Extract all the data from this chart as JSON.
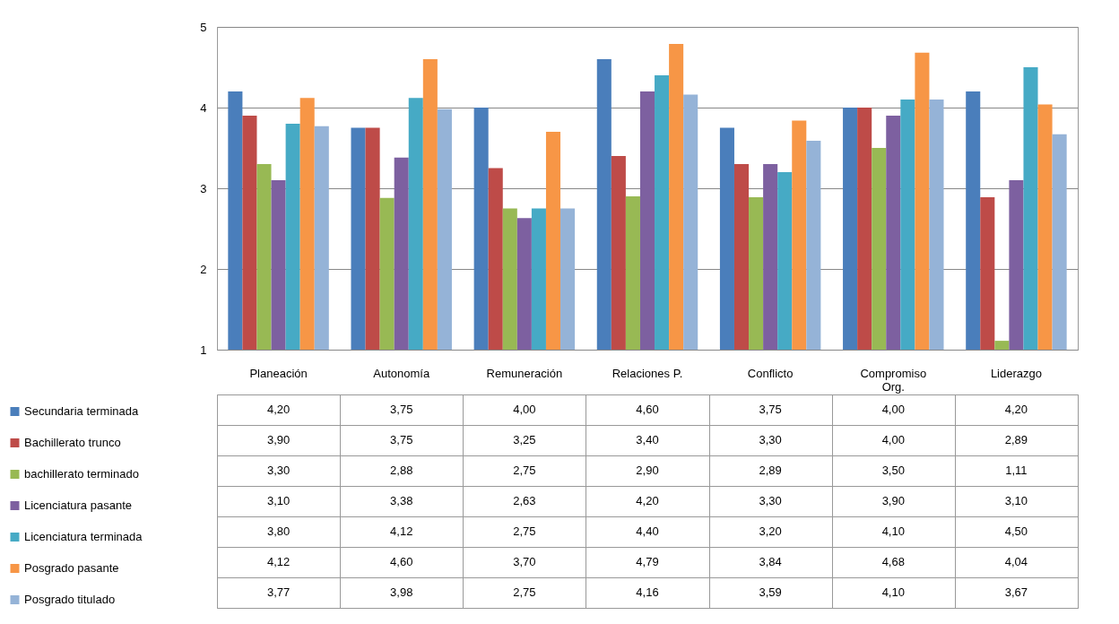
{
  "chart_data": {
    "type": "bar",
    "categories": [
      "Planeación",
      "Autonomía",
      "Remuneración",
      "Relaciones P.",
      "Conflicto",
      "Compromiso\nOrg.",
      "Liderazgo"
    ],
    "ylim": [
      1,
      5
    ],
    "yticks": [
      1,
      2,
      3,
      4,
      5
    ],
    "grid": "y",
    "legend": "bottom left",
    "series": [
      {
        "name": "Secundaria terminada",
        "color": "#4a7ebb",
        "values": [
          4.2,
          3.75,
          4.0,
          4.6,
          3.75,
          4.0,
          4.2
        ],
        "value_labels": [
          "4,20",
          "3,75",
          "4,00",
          "4,60",
          "3,75",
          "4,00",
          "4,20"
        ]
      },
      {
        "name": "Bachillerato trunco",
        "color": "#be4b48",
        "values": [
          3.9,
          3.75,
          3.25,
          3.4,
          3.3,
          4.0,
          2.89
        ],
        "value_labels": [
          "3,90",
          "3,75",
          "3,25",
          "3,40",
          "3,30",
          "4,00",
          "2,89"
        ]
      },
      {
        "name": "bachillerato terminado",
        "color": "#98b954",
        "values": [
          3.3,
          2.88,
          2.75,
          2.9,
          2.89,
          3.5,
          1.11
        ],
        "value_labels": [
          "3,30",
          "2,88",
          "2,75",
          "2,90",
          "2,89",
          "3,50",
          "1,11"
        ]
      },
      {
        "name": "Licenciatura pasante",
        "color": "#7d60a0",
        "values": [
          3.1,
          3.38,
          2.63,
          4.2,
          3.3,
          3.9,
          3.1
        ],
        "value_labels": [
          "3,10",
          "3,38",
          "2,63",
          "4,20",
          "3,30",
          "3,90",
          "3,10"
        ]
      },
      {
        "name": "Licenciatura terminada",
        "color": "#46aac5",
        "values": [
          3.8,
          4.12,
          2.75,
          4.4,
          3.2,
          4.1,
          4.5
        ],
        "value_labels": [
          "3,80",
          "4,12",
          "2,75",
          "4,40",
          "3,20",
          "4,10",
          "4,50"
        ]
      },
      {
        "name": "Posgrado pasante",
        "color": "#f79646",
        "values": [
          4.12,
          4.6,
          3.7,
          4.79,
          3.84,
          4.68,
          4.04
        ],
        "value_labels": [
          "4,12",
          "4,60",
          "3,70",
          "4,79",
          "3,84",
          "4,68",
          "4,04"
        ]
      },
      {
        "name": "Posgrado titulado",
        "color": "#95b3d7",
        "values": [
          3.77,
          3.98,
          2.75,
          4.16,
          3.59,
          4.1,
          3.67
        ],
        "value_labels": [
          "3,77",
          "3,98",
          "2,75",
          "4,16",
          "3,59",
          "4,10",
          "3,67"
        ]
      }
    ]
  }
}
